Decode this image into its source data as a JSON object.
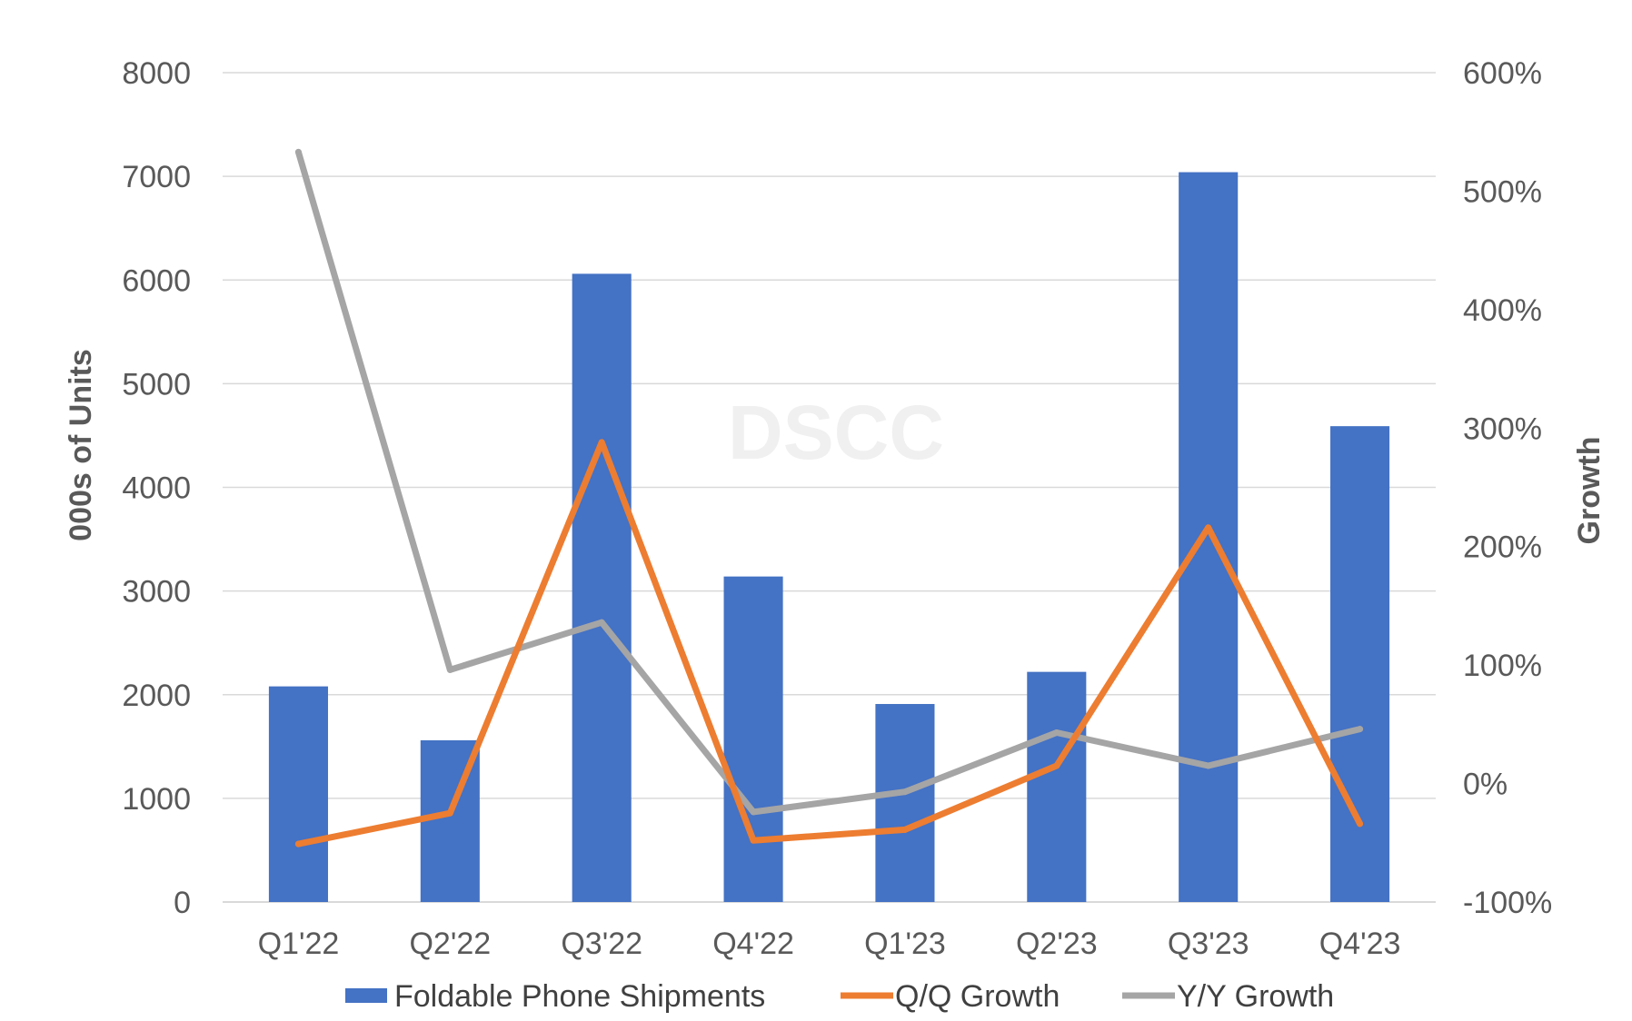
{
  "chart_data": {
    "type": "bar",
    "categories": [
      "Q1'22",
      "Q2'22",
      "Q3'22",
      "Q4'22",
      "Q1'23",
      "Q2'23",
      "Q3'23",
      "Q4'23"
    ],
    "series": [
      {
        "name": "Foldable Phone Shipments",
        "type": "bar",
        "axis": "left",
        "color": "#4472c4",
        "values": [
          2080,
          1560,
          6060,
          3140,
          1910,
          2220,
          7040,
          4590
        ]
      },
      {
        "name": "Q/Q Growth",
        "type": "line",
        "axis": "right",
        "color": "#ed7d31",
        "values": [
          -51,
          -25,
          288,
          -48,
          -39,
          15,
          216,
          -34
        ]
      },
      {
        "name": "Y/Y Growth",
        "type": "line",
        "axis": "right",
        "color": "#a5a5a5",
        "values": [
          533,
          96,
          136,
          -24,
          -7,
          43,
          15,
          46
        ]
      }
    ],
    "ylabel": "000s of Units",
    "y2label": "Growth",
    "ylim": [
      0,
      8000
    ],
    "y2lim": [
      -100,
      600
    ],
    "yticks": [
      "0",
      "1000",
      "2000",
      "3000",
      "4000",
      "5000",
      "6000",
      "7000",
      "8000"
    ],
    "y2ticks": [
      "-100%",
      "0%",
      "100%",
      "200%",
      "300%",
      "400%",
      "500%",
      "600%"
    ],
    "grid": true,
    "legend": "bottom",
    "watermark": "DSCC"
  }
}
